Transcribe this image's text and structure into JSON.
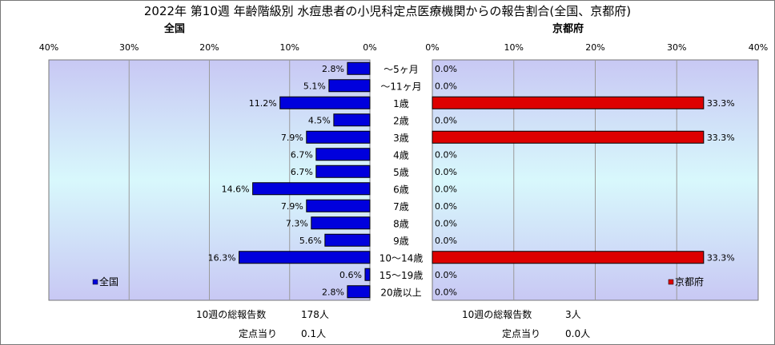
{
  "title": "2022年 第10週 年齢階級別 水痘患者の小児科定点医療機関からの報告割合(全国、京都府)",
  "colors": {
    "national": "#0000dd",
    "kyoto": "#dd0000"
  },
  "chart_data": [
    {
      "type": "bar",
      "orientation": "horizontal",
      "direction": "right-to-left",
      "title": "全国",
      "legend": "全国",
      "legend_position": "bottom-left",
      "xlim": [
        0,
        40
      ],
      "xticks": [
        "40%",
        "30%",
        "20%",
        "10%",
        "0%"
      ],
      "grid": true,
      "categories": [
        "〜5ヶ月",
        "〜11ヶ月",
        "1歳",
        "2歳",
        "3歳",
        "4歳",
        "5歳",
        "6歳",
        "7歳",
        "8歳",
        "9歳",
        "10〜14歳",
        "15〜19歳",
        "20歳以上"
      ],
      "values": [
        2.8,
        5.1,
        11.2,
        4.5,
        7.9,
        6.7,
        6.7,
        14.6,
        7.9,
        7.3,
        5.6,
        16.3,
        0.6,
        2.8
      ],
      "labels": [
        "2.8%",
        "5.1%",
        "11.2%",
        "4.5%",
        "7.9%",
        "6.7%",
        "6.7%",
        "14.6%",
        "7.9%",
        "7.3%",
        "5.6%",
        "16.3%",
        "0.6%",
        "2.8%"
      ]
    },
    {
      "type": "bar",
      "orientation": "horizontal",
      "direction": "left-to-right",
      "title": "京都府",
      "legend": "京都府",
      "legend_position": "bottom-right",
      "xlim": [
        0,
        40
      ],
      "xticks": [
        "0%",
        "10%",
        "20%",
        "30%",
        "40%"
      ],
      "grid": true,
      "categories": [
        "〜5ヶ月",
        "〜11ヶ月",
        "1歳",
        "2歳",
        "3歳",
        "4歳",
        "5歳",
        "6歳",
        "7歳",
        "8歳",
        "9歳",
        "10〜14歳",
        "15〜19歳",
        "20歳以上"
      ],
      "values": [
        0,
        0,
        33.3,
        0,
        33.3,
        0,
        0,
        0,
        0,
        0,
        0,
        33.3,
        0,
        0
      ],
      "labels": [
        "0.0%",
        "0.0%",
        "33.3%",
        "0.0%",
        "33.3%",
        "0.0%",
        "0.0%",
        "0.0%",
        "0.0%",
        "0.0%",
        "0.0%",
        "33.3%",
        "0.0%",
        "0.0%"
      ]
    }
  ],
  "stats": {
    "national": {
      "total_label": "10週の総報告数",
      "total_value": "178人",
      "per_label": "定点当り",
      "per_value": "0.1人"
    },
    "kyoto": {
      "total_label": "10週の総報告数",
      "total_value": "3人",
      "per_label": "定点当り",
      "per_value": "0.0人"
    }
  }
}
